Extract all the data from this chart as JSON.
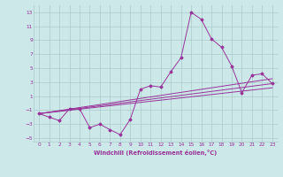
{
  "xlabel": "Windchill (Refroidissement éolien,°C)",
  "background_color": "#cce8e8",
  "grid_color": "#aacccc",
  "line_color": "#993399",
  "xlim": [
    -0.5,
    23.5
  ],
  "ylim": [
    -5.5,
    14.0
  ],
  "xticks": [
    0,
    1,
    2,
    3,
    4,
    5,
    6,
    7,
    8,
    9,
    10,
    11,
    12,
    13,
    14,
    15,
    16,
    17,
    18,
    19,
    20,
    21,
    22,
    23
  ],
  "yticks": [
    -5,
    -3,
    -1,
    1,
    3,
    5,
    7,
    9,
    11,
    13
  ],
  "series": [
    [
      0,
      -1.5
    ],
    [
      1,
      -2.0
    ],
    [
      2,
      -2.5
    ],
    [
      3,
      -0.8
    ],
    [
      4,
      -0.8
    ],
    [
      5,
      -3.5
    ],
    [
      6,
      -3.0
    ],
    [
      7,
      -3.8
    ],
    [
      8,
      -4.5
    ],
    [
      9,
      -2.3
    ],
    [
      10,
      2.0
    ],
    [
      11,
      2.5
    ],
    [
      12,
      2.3
    ],
    [
      13,
      4.5
    ],
    [
      14,
      6.5
    ],
    [
      15,
      13.0
    ],
    [
      16,
      12.0
    ],
    [
      17,
      9.2
    ],
    [
      18,
      8.0
    ],
    [
      19,
      5.3
    ],
    [
      20,
      1.5
    ],
    [
      21,
      4.0
    ],
    [
      22,
      4.2
    ],
    [
      23,
      2.8
    ]
  ],
  "ref_line1": [
    [
      0,
      -1.5
    ],
    [
      23,
      2.8
    ]
  ],
  "ref_line2": [
    [
      0,
      -1.5
    ],
    [
      23,
      3.5
    ]
  ],
  "ref_line3": [
    [
      0,
      -1.5
    ],
    [
      23,
      2.2
    ]
  ]
}
